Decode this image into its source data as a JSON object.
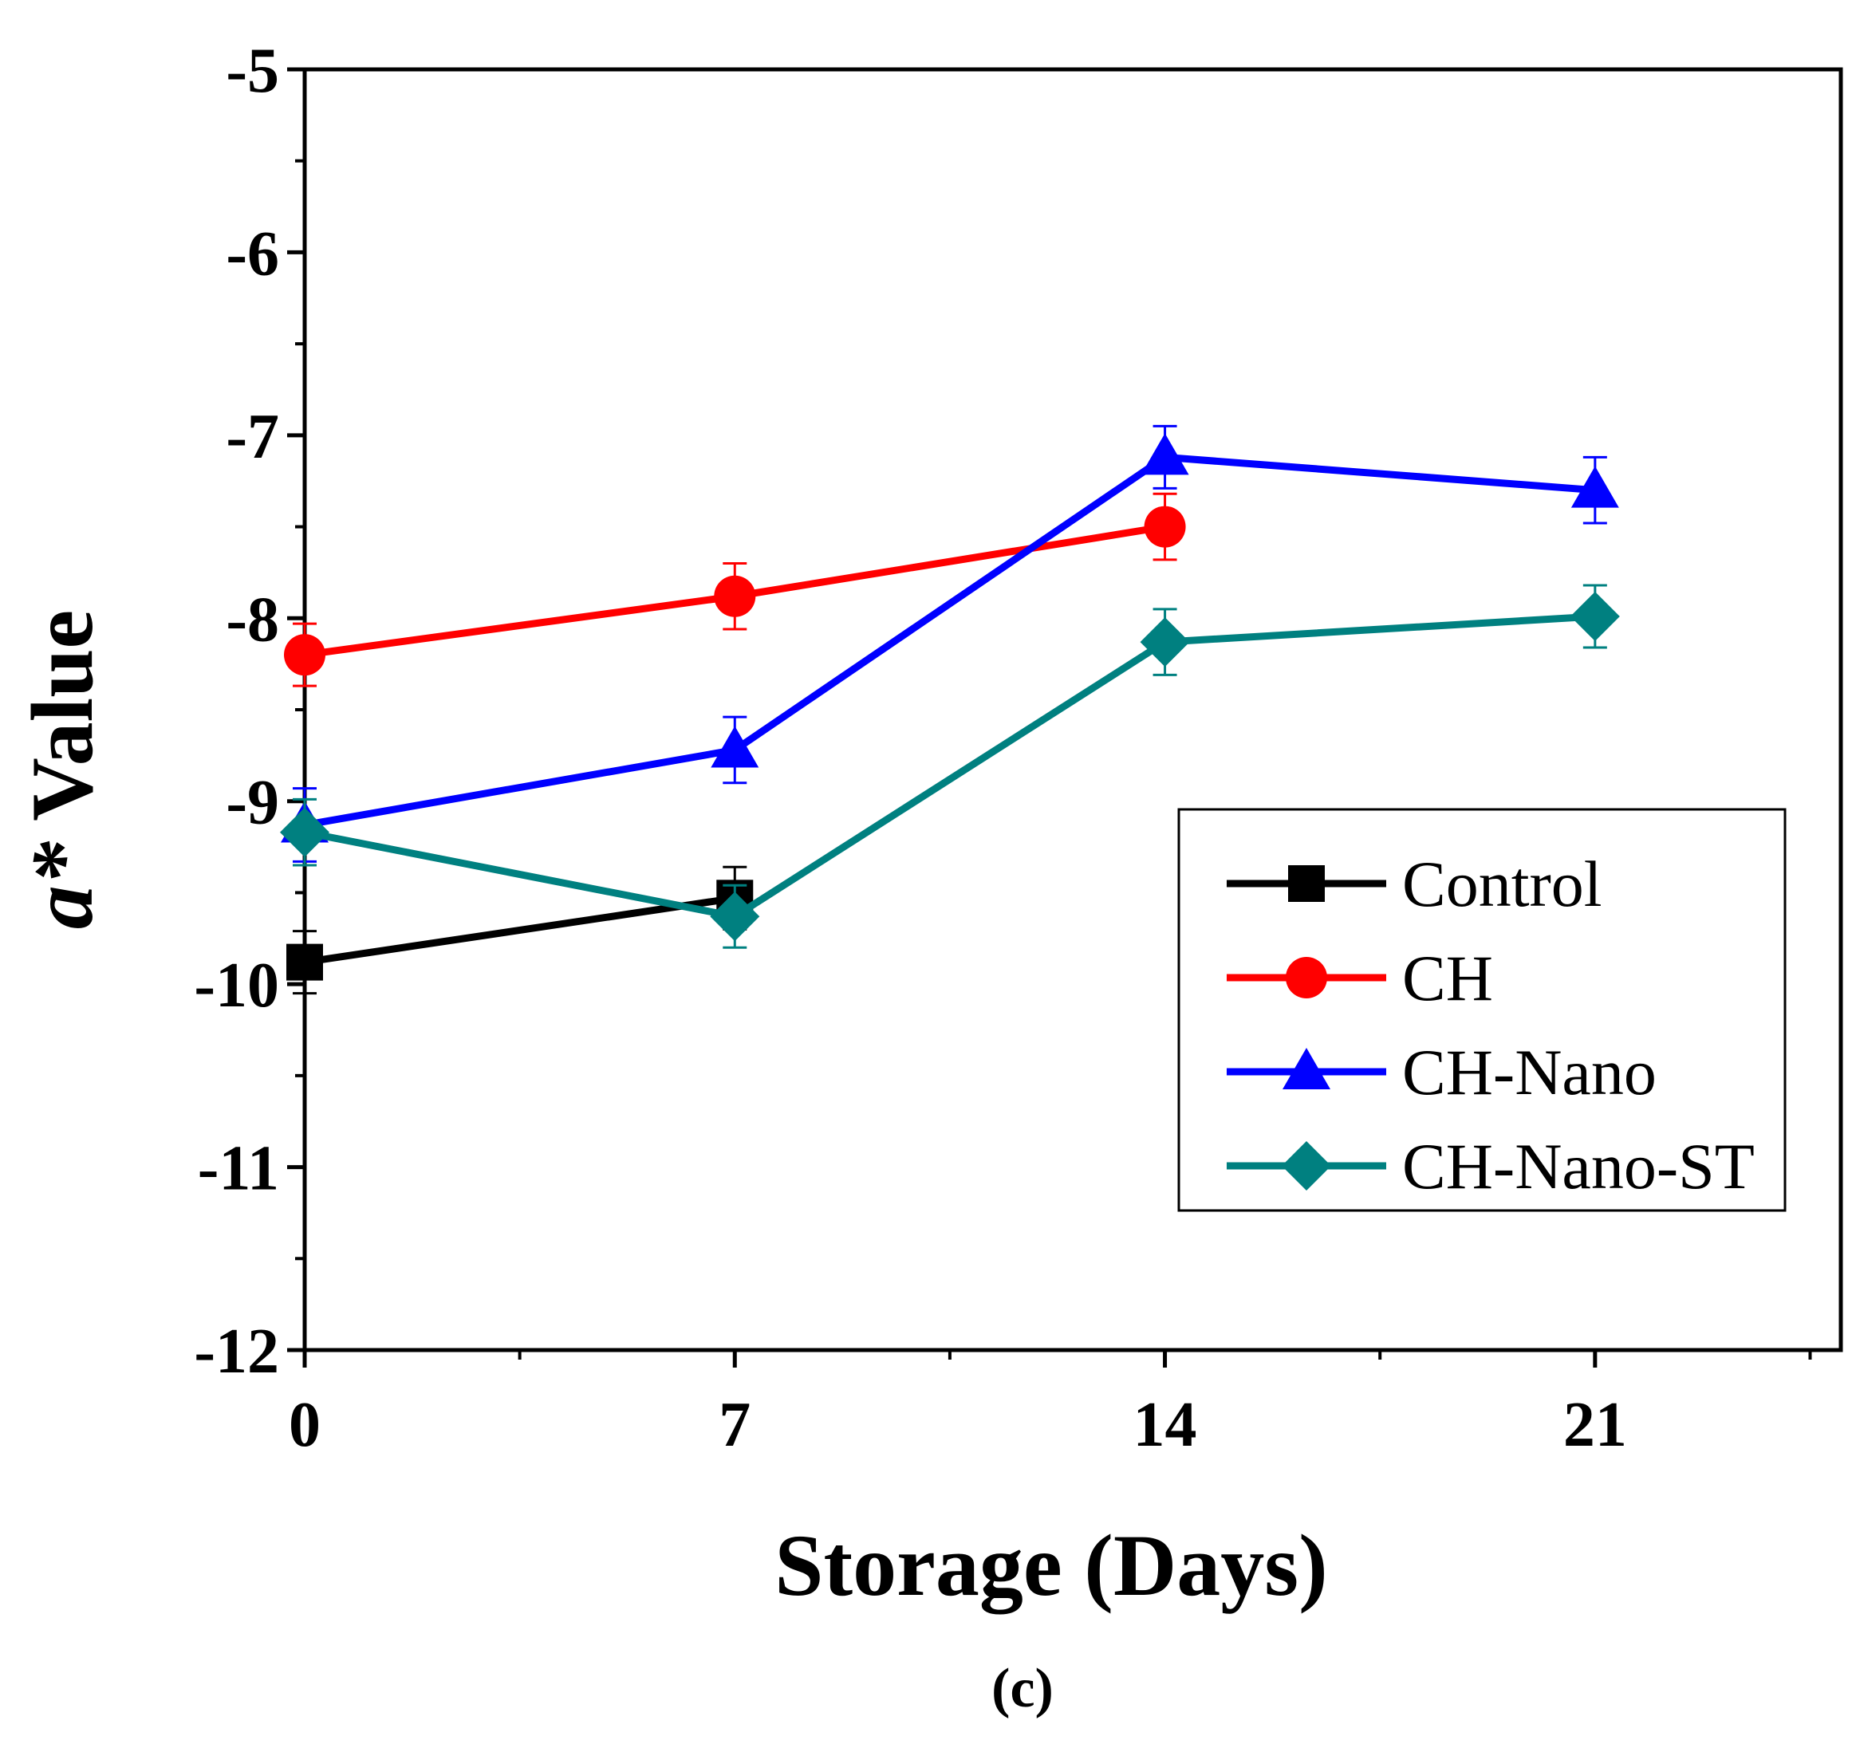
{
  "chart_data": {
    "type": "line",
    "title": "",
    "xlabel": "Storage (Days)",
    "ylabel_italic": "a*",
    "ylabel_rest": " Value",
    "caption": "(c)",
    "x": [
      0,
      7,
      14,
      21
    ],
    "xlim": [
      0,
      25
    ],
    "ylim": [
      -12,
      -5
    ],
    "x_ticks": [
      0,
      7,
      14,
      21
    ],
    "x_tick_labels": [
      "0",
      "7",
      "14",
      "21"
    ],
    "y_ticks": [
      -12,
      -11,
      -10,
      -9,
      -8,
      -7,
      -6,
      -5
    ],
    "y_tick_labels": [
      "-12",
      "-11",
      "-10",
      "-9",
      "-8",
      "-7",
      "-6",
      "-5"
    ],
    "grid": false,
    "legend_position": "right",
    "series": [
      {
        "name": "Control",
        "color": "#000000",
        "marker": "square",
        "x": [
          0,
          7
        ],
        "values": [
          -9.88,
          -9.53
        ],
        "errors": [
          0.17,
          0.17
        ]
      },
      {
        "name": "CH",
        "color": "#ff0000",
        "marker": "circle",
        "x": [
          0,
          7,
          14
        ],
        "values": [
          -8.2,
          -7.88,
          -7.5
        ],
        "errors": [
          0.17,
          0.18,
          0.18
        ]
      },
      {
        "name": "CH-Nano",
        "color": "#0000ff",
        "marker": "triangle",
        "x": [
          0,
          7,
          14,
          21
        ],
        "values": [
          -9.13,
          -8.72,
          -7.12,
          -7.3
        ],
        "errors": [
          0.2,
          0.18,
          0.17,
          0.18
        ]
      },
      {
        "name": "CH-Nano-ST",
        "color": "#008080",
        "marker": "diamond",
        "x": [
          0,
          7,
          14,
          21
        ],
        "values": [
          -9.17,
          -9.63,
          -8.13,
          -7.99
        ],
        "errors": [
          0.18,
          0.17,
          0.18,
          0.17
        ]
      }
    ]
  }
}
